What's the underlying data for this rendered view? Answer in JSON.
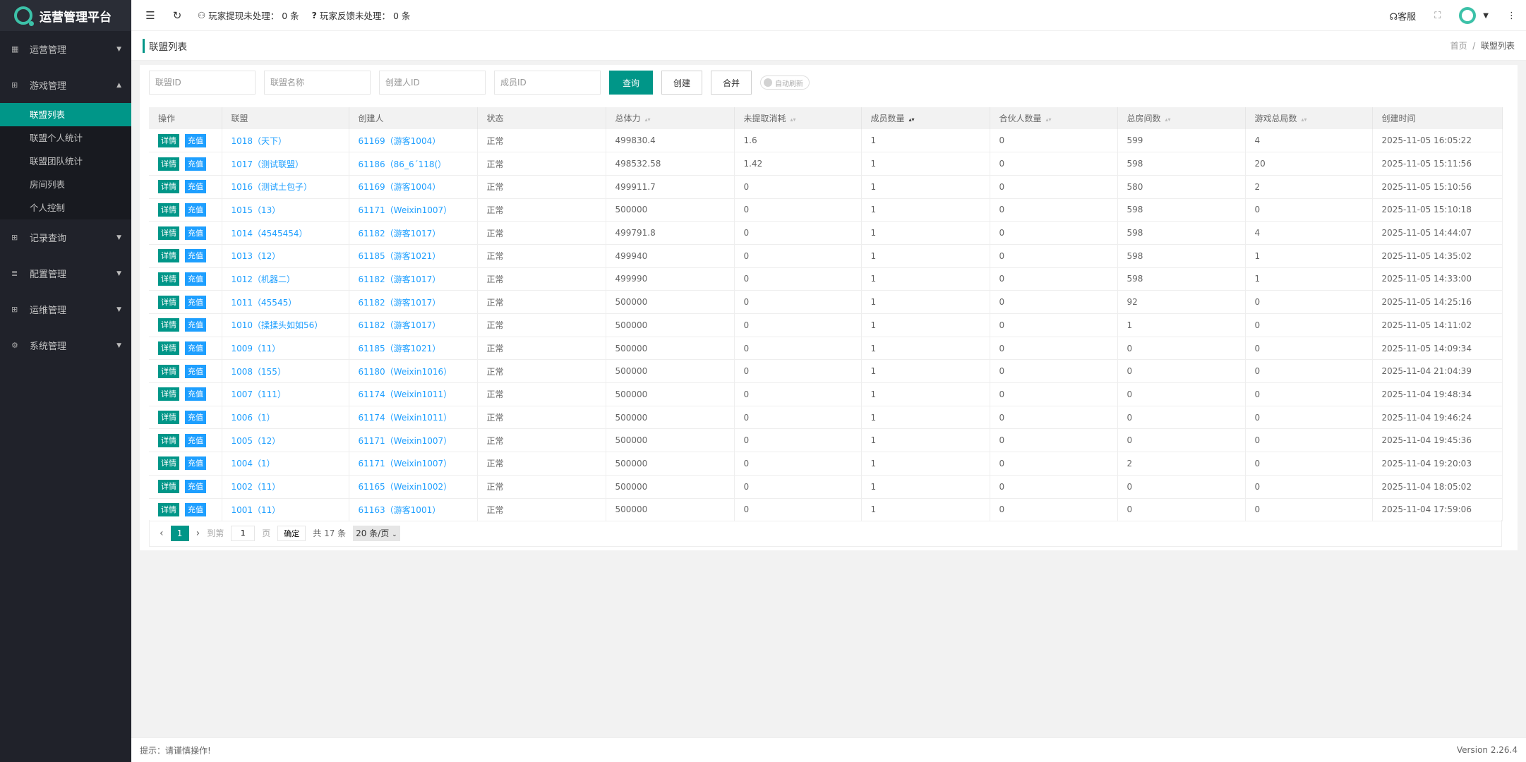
{
  "app": {
    "title": "运营管理平台",
    "accent": "#009688",
    "link_color": "#1e9fff"
  },
  "sidebar": {
    "items": [
      {
        "label": "运营管理",
        "icon": "dashboard-icon",
        "expanded": false
      },
      {
        "label": "游戏管理",
        "icon": "gamepad-icon",
        "expanded": true,
        "children": [
          "联盟列表",
          "联盟个人统计",
          "联盟团队统计",
          "房间列表",
          "个人控制"
        ],
        "active_child": "联盟列表"
      },
      {
        "label": "记录查询",
        "icon": "gamepad-icon",
        "expanded": false
      },
      {
        "label": "配置管理",
        "icon": "list-icon",
        "expanded": false
      },
      {
        "label": "运维管理",
        "icon": "gamepad-icon",
        "expanded": false
      },
      {
        "label": "系统管理",
        "icon": "gear-icon",
        "expanded": false
      }
    ]
  },
  "header": {
    "withdraw_label": "玩家提现未处理：",
    "withdraw_count": "0 条",
    "feedback_label": "玩家反馈未处理：",
    "feedback_count": "0 条",
    "service_label": "客服"
  },
  "page": {
    "title": "联盟列表",
    "breadcrumb": [
      "首页",
      "联盟列表"
    ]
  },
  "filters": {
    "placeholders": [
      "联盟ID",
      "联盟名称",
      "创建人ID",
      "成员ID"
    ],
    "query": "查询",
    "create": "创建",
    "merge": "合并",
    "auto_refresh": "自动刷新",
    "auto_refresh_on": false
  },
  "table": {
    "columns": [
      "操作",
      "联盟",
      "创建人",
      "状态",
      "总体力",
      "未提取消耗",
      "成员数量",
      "合伙人数量",
      "总房间数",
      "游戏总局数",
      "创建时间"
    ],
    "sortable": [
      false,
      false,
      false,
      false,
      true,
      true,
      true,
      true,
      true,
      true,
      false
    ],
    "sorted_column": "成员数量",
    "sort_direction": "desc",
    "action_detail": "详情",
    "action_recharge": "充值",
    "rows": [
      [
        "1018（天下）",
        "61169（游客1004）",
        "正常",
        "499830.4",
        "1.6",
        "1",
        "0",
        "599",
        "4",
        "2025-11-05 16:05:22"
      ],
      [
        "1017（测试联盟）",
        "61186（86_6´118(）",
        "正常",
        "498532.58",
        "1.42",
        "1",
        "0",
        "598",
        "20",
        "2025-11-05 15:11:56"
      ],
      [
        "1016（测试土包子）",
        "61169（游客1004）",
        "正常",
        "499911.7",
        "0",
        "1",
        "0",
        "580",
        "2",
        "2025-11-05 15:10:56"
      ],
      [
        "1015（13）",
        "61171（Weixin1007）",
        "正常",
        "500000",
        "0",
        "1",
        "0",
        "598",
        "0",
        "2025-11-05 15:10:18"
      ],
      [
        "1014（4545454）",
        "61182（游客1017）",
        "正常",
        "499791.8",
        "0",
        "1",
        "0",
        "598",
        "4",
        "2025-11-05 14:44:07"
      ],
      [
        "1013（12）",
        "61185（游客1021）",
        "正常",
        "499940",
        "0",
        "1",
        "0",
        "598",
        "1",
        "2025-11-05 14:35:02"
      ],
      [
        "1012（机器二）",
        "61182（游客1017）",
        "正常",
        "499990",
        "0",
        "1",
        "0",
        "598",
        "1",
        "2025-11-05 14:33:00"
      ],
      [
        "1011（45545）",
        "61182（游客1017）",
        "正常",
        "500000",
        "0",
        "1",
        "0",
        "92",
        "0",
        "2025-11-05 14:25:16"
      ],
      [
        "1010（揉揉头如如56）",
        "61182（游客1017）",
        "正常",
        "500000",
        "0",
        "1",
        "0",
        "1",
        "0",
        "2025-11-05 14:11:02"
      ],
      [
        "1009（11）",
        "61185（游客1021）",
        "正常",
        "500000",
        "0",
        "1",
        "0",
        "0",
        "0",
        "2025-11-05 14:09:34"
      ],
      [
        "1008（155）",
        "61180（Weixin1016）",
        "正常",
        "500000",
        "0",
        "1",
        "0",
        "0",
        "0",
        "2025-11-04 21:04:39"
      ],
      [
        "1007（111）",
        "61174（Weixin1011）",
        "正常",
        "500000",
        "0",
        "1",
        "0",
        "0",
        "0",
        "2025-11-04 19:48:34"
      ],
      [
        "1006（1）",
        "61174（Weixin1011）",
        "正常",
        "500000",
        "0",
        "1",
        "0",
        "0",
        "0",
        "2025-11-04 19:46:24"
      ],
      [
        "1005（12）",
        "61171（Weixin1007）",
        "正常",
        "500000",
        "0",
        "1",
        "0",
        "0",
        "0",
        "2025-11-04 19:45:36"
      ],
      [
        "1004（1）",
        "61171（Weixin1007）",
        "正常",
        "500000",
        "0",
        "1",
        "0",
        "2",
        "0",
        "2025-11-04 19:20:03"
      ],
      [
        "1002（11）",
        "61165（Weixin1002）",
        "正常",
        "500000",
        "0",
        "1",
        "0",
        "0",
        "0",
        "2025-11-04 18:05:02"
      ],
      [
        "1001（11）",
        "61163（游客1001）",
        "正常",
        "500000",
        "0",
        "1",
        "0",
        "0",
        "0",
        "2025-11-04 17:59:06"
      ]
    ]
  },
  "pagination": {
    "current": "1",
    "goto_label": "到第",
    "goto_value": "1",
    "page_unit": "页",
    "confirm": "确定",
    "total": "共 17 条",
    "page_size": "20 条/页"
  },
  "footer": {
    "tip": "提示：请谨慎操作!",
    "version": "Version 2.26.4"
  }
}
